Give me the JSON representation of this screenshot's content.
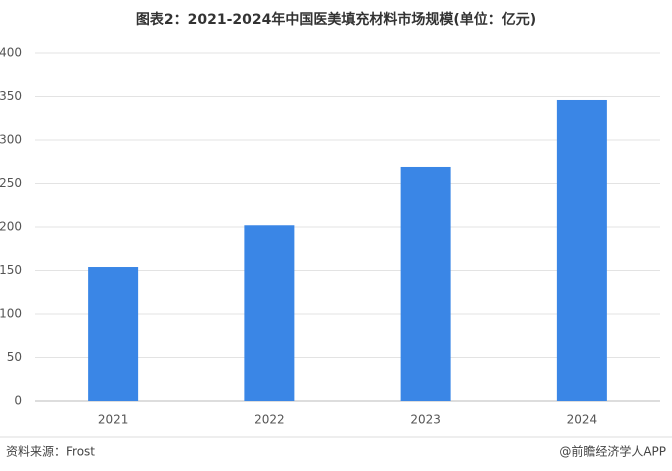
{
  "chart_data": {
    "type": "bar",
    "title": "图表2：2021-2024年中国医美填充材料市场规模(单位：亿元)",
    "categories": [
      "2021",
      "2022",
      "2023",
      "2024"
    ],
    "values": [
      154,
      202,
      269,
      346
    ],
    "color": "#3a86e6",
    "ylim": [
      0,
      400
    ],
    "yticks": [
      0,
      50,
      100,
      150,
      200,
      250,
      300,
      350,
      400
    ],
    "grid": true,
    "source": "资料来源：Frost",
    "credit": "@前瞻经济学人APP"
  }
}
